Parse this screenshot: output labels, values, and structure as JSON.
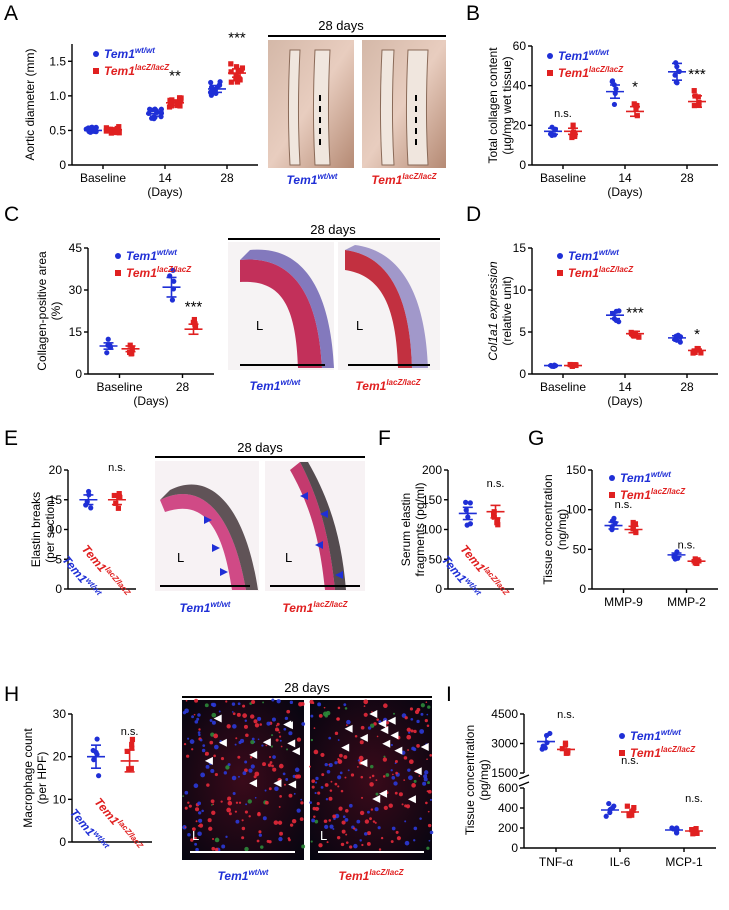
{
  "figure": {
    "panel_letters": [
      "A",
      "B",
      "C",
      "D",
      "E",
      "F",
      "G",
      "H",
      "I"
    ],
    "legend": {
      "wt_base": "Tem1",
      "wt_sup": "wt/wt",
      "ko_base": "Tem1",
      "ko_sup": "lacZ/lacZ"
    },
    "days28": "28 days",
    "days_label": "(Days)",
    "lumen": "L"
  },
  "colors": {
    "wt": "#1f2fd6",
    "ko": "#e02020"
  },
  "chart_data": [
    {
      "panel": "A",
      "type": "scatter",
      "ylabel": "Aortic diameter (mm)",
      "xlabel": "(Days)",
      "categories": [
        "Baseline",
        "14",
        "28"
      ],
      "ylim": [
        0,
        1.75
      ],
      "yticks": [
        "0",
        "0.5",
        "1.0",
        "1.5"
      ],
      "ytick_values": [
        0,
        0.5,
        1.0,
        1.5
      ],
      "series": [
        {
          "name": "Tem1 wt/wt",
          "means": [
            0.5,
            0.74,
            1.1
          ]
        },
        {
          "name": "Tem1 lacZ/lacZ",
          "means": [
            0.51,
            0.9,
            1.33
          ]
        }
      ],
      "significance": [
        "",
        "**",
        "***"
      ]
    },
    {
      "panel": "B",
      "type": "scatter",
      "ylabel": "Total collagen content",
      "ylabel2": "(µg/mg wet tissue)",
      "xlabel": "(Days)",
      "categories": [
        "Baseline",
        "14",
        "28"
      ],
      "ylim": [
        0,
        60
      ],
      "yticks": [
        "0",
        "20",
        "40",
        "60"
      ],
      "ytick_values": [
        0,
        20,
        40,
        60
      ],
      "series": [
        {
          "name": "Tem1 wt/wt",
          "means": [
            17,
            37,
            47
          ]
        },
        {
          "name": "Tem1 lacZ/lacZ",
          "means": [
            17,
            27,
            32
          ]
        }
      ],
      "significance": [
        "n.s.",
        "*",
        "***"
      ]
    },
    {
      "panel": "C",
      "type": "scatter",
      "ylabel": "Collagen-positive area",
      "ylabel2": "(%)",
      "xlabel": "(Days)",
      "categories": [
        "Baseline",
        "28"
      ],
      "ylim": [
        0,
        45
      ],
      "yticks": [
        "0",
        "15",
        "30",
        "45"
      ],
      "ytick_values": [
        0,
        15,
        30,
        45
      ],
      "series": [
        {
          "name": "Tem1 wt/wt",
          "means": [
            10,
            31
          ]
        },
        {
          "name": "Tem1 lacZ/lacZ",
          "means": [
            9,
            16
          ]
        }
      ],
      "significance": [
        "",
        "***"
      ]
    },
    {
      "panel": "D",
      "type": "scatter",
      "ylabel": "Col1a1 expression",
      "ylabel2": "(relative unit)",
      "xlabel": "(Days)",
      "categories": [
        "Baseline",
        "14",
        "28"
      ],
      "ylim": [
        0,
        15
      ],
      "yticks": [
        "0",
        "5",
        "10",
        "15"
      ],
      "ytick_values": [
        0,
        5,
        10,
        15
      ],
      "series": [
        {
          "name": "Tem1 wt/wt",
          "means": [
            1,
            7,
            4.3
          ]
        },
        {
          "name": "Tem1 lacZ/lacZ",
          "means": [
            1,
            4.8,
            2.8
          ]
        }
      ],
      "significance": [
        "",
        "***",
        "*"
      ]
    },
    {
      "panel": "E",
      "type": "scatter",
      "ylabel": "Elastin breaks",
      "ylabel2": "(per section)",
      "categories": [
        "Tem1 wt/wt",
        "Tem1 lacZ/lacZ"
      ],
      "ylim": [
        0,
        20
      ],
      "yticks": [
        "0",
        "5",
        "10",
        "15",
        "20"
      ],
      "ytick_values": [
        0,
        5,
        10,
        15,
        20
      ],
      "series": [
        {
          "name": "Tem1 wt/wt",
          "means": [
            15
          ]
        },
        {
          "name": "Tem1 lacZ/lacZ",
          "means": [
            15
          ]
        }
      ],
      "significance": [
        "n.s."
      ]
    },
    {
      "panel": "F",
      "type": "scatter",
      "ylabel": "Serum elastin",
      "ylabel2": "fragments (pg/ml)",
      "categories": [
        "Tem1 wt/wt",
        "Tem1 lacZ/lacZ"
      ],
      "ylim": [
        0,
        200
      ],
      "yticks": [
        "0",
        "50",
        "100",
        "150",
        "200"
      ],
      "ytick_values": [
        0,
        50,
        100,
        150,
        200
      ],
      "series": [
        {
          "name": "Tem1 wt/wt",
          "means": [
            127
          ]
        },
        {
          "name": "Tem1 lacZ/lacZ",
          "means": [
            130
          ]
        }
      ],
      "significance": [
        "n.s."
      ]
    },
    {
      "panel": "G",
      "type": "scatter",
      "ylabel": "Tissue concentration",
      "ylabel2": "(ng/mg)",
      "categories": [
        "MMP-9",
        "MMP-2"
      ],
      "ylim": [
        0,
        150
      ],
      "yticks": [
        "0",
        "50",
        "100",
        "150"
      ],
      "ytick_values": [
        0,
        50,
        100,
        150
      ],
      "series": [
        {
          "name": "Tem1 wt/wt",
          "means": [
            80,
            43
          ]
        },
        {
          "name": "Tem1 lacZ/lacZ",
          "means": [
            75,
            35
          ]
        }
      ],
      "significance": [
        "n.s.",
        "n.s."
      ]
    },
    {
      "panel": "H",
      "type": "scatter",
      "ylabel": "Macrophage count",
      "ylabel2": "(per HPF)",
      "categories": [
        "Tem1 wt/wt",
        "Tem1 lacZ/lacZ"
      ],
      "ylim": [
        0,
        30
      ],
      "yticks": [
        "0",
        "10",
        "20",
        "30"
      ],
      "ytick_values": [
        0,
        10,
        20,
        30
      ],
      "series": [
        {
          "name": "Tem1 wt/wt",
          "means": [
            20
          ]
        },
        {
          "name": "Tem1 lacZ/lacZ",
          "means": [
            19
          ]
        }
      ],
      "significance": [
        "n.s."
      ]
    },
    {
      "panel": "I",
      "type": "scatter",
      "ylabel": "Tissue concentration",
      "ylabel2": "(pg/mg)",
      "categories": [
        "TNF-α",
        "IL-6",
        "MCP-1"
      ],
      "ylim_broken": [
        [
          0,
          600
        ],
        [
          1500,
          4500
        ]
      ],
      "yticks": [
        "0",
        "200",
        "400",
        "600",
        "1500",
        "3000",
        "4500"
      ],
      "ytick_values": [
        0,
        200,
        400,
        600,
        1500,
        3000,
        4500
      ],
      "series": [
        {
          "name": "Tem1 wt/wt",
          "means": [
            3100,
            380,
            180
          ]
        },
        {
          "name": "Tem1 lacZ/lacZ",
          "means": [
            2700,
            360,
            170
          ]
        }
      ],
      "significance": [
        "n.s.",
        "n.s.",
        "n.s."
      ]
    }
  ]
}
